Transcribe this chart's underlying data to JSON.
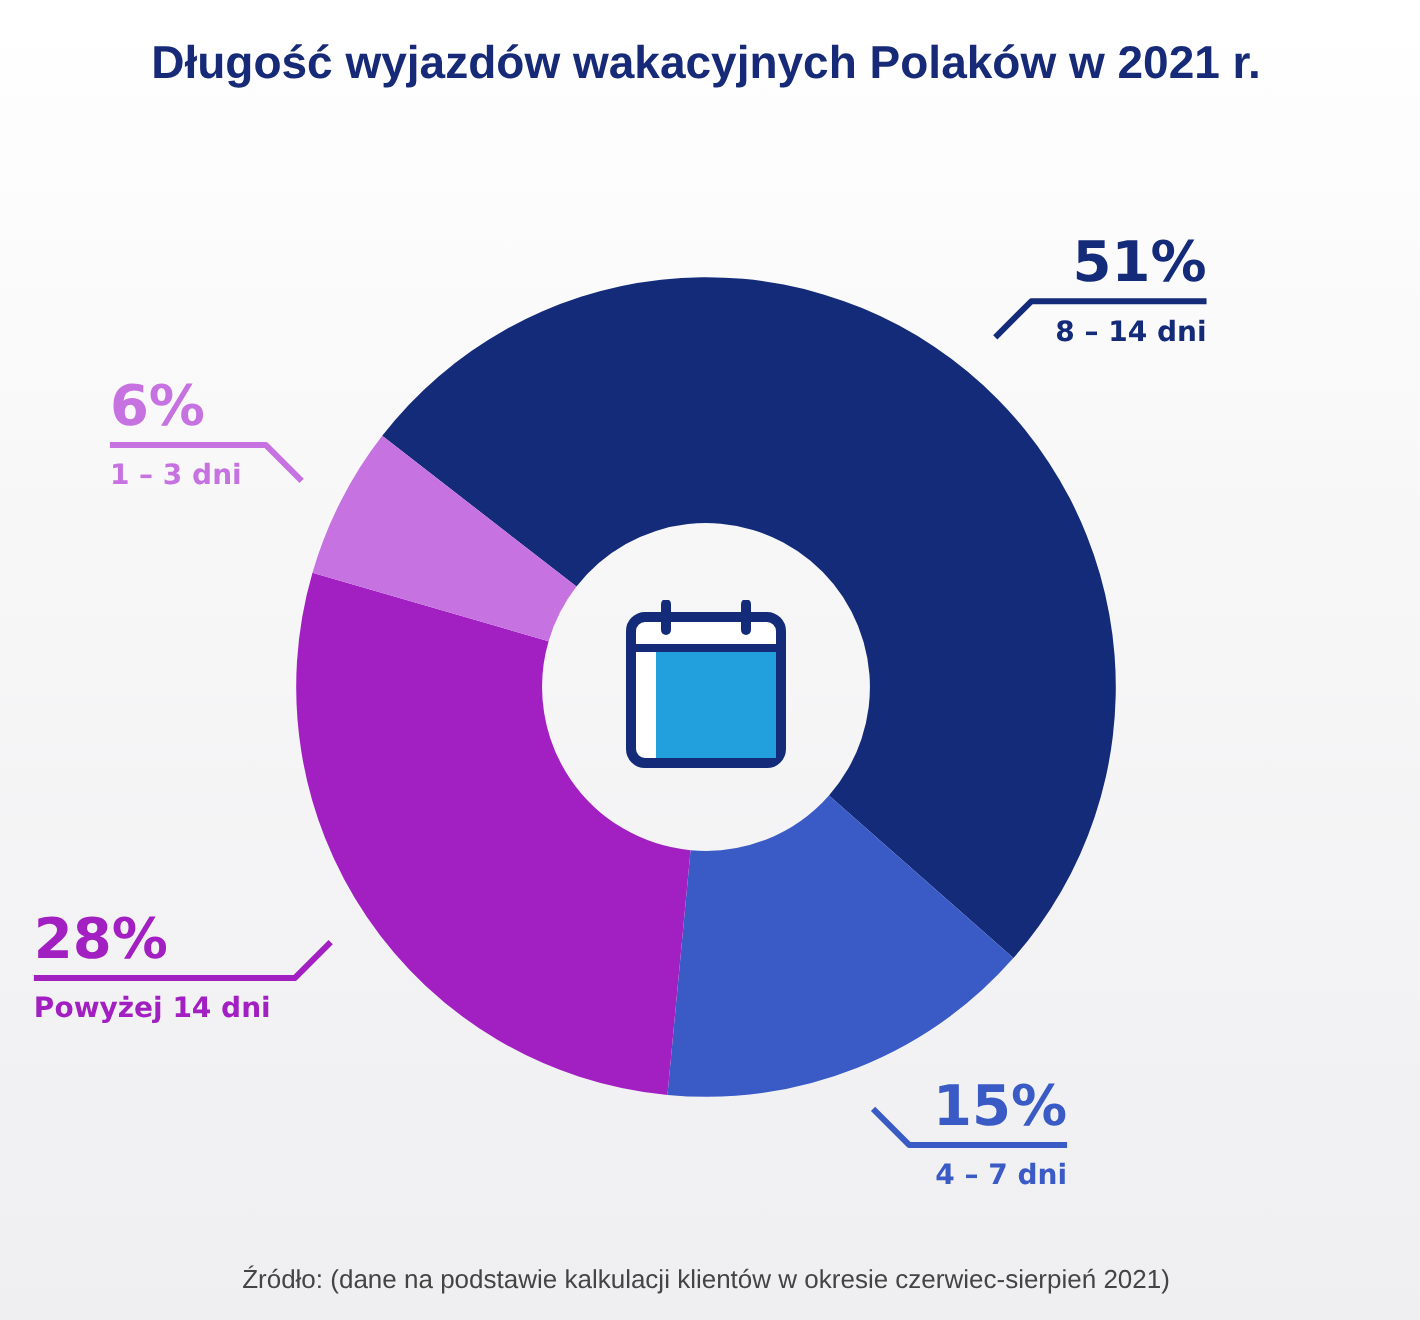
{
  "chart_data": {
    "type": "donut",
    "title": "Długość wyjazdów wakacyjnych Polaków w 2021 r.",
    "categories": [
      "8 – 14 dni",
      "4 – 7 dni",
      "Powyżej 14 dni",
      "1 – 3 dni"
    ],
    "values": [
      51,
      15,
      28,
      6
    ],
    "value_labels": [
      "51%",
      "15%",
      "28%",
      "6%"
    ],
    "colors": [
      "#142b7a",
      "#3a5ac6",
      "#a21fc2",
      "#c672e1"
    ],
    "annotations": [
      "Źródło: (dane na podstawie kalkulacji klientów w okresie czerwiec-sierpień 2021)"
    ]
  }
}
